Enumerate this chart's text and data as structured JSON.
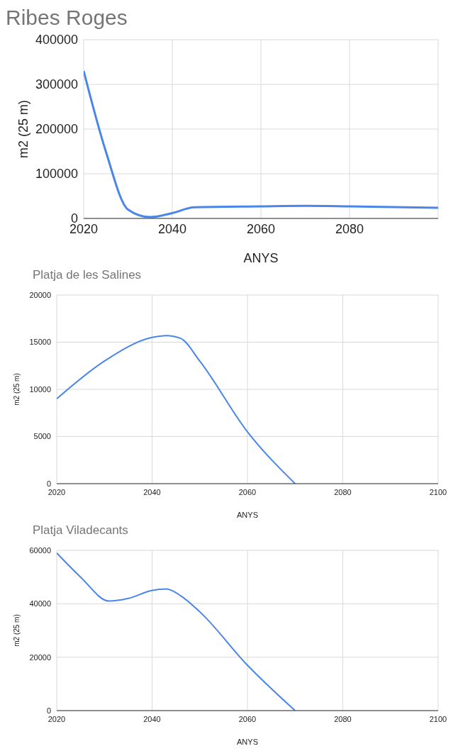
{
  "chart_data": [
    {
      "type": "line",
      "title": "Ribes Roges",
      "xlabel": "ANYS",
      "ylabel": "m2 (25 m)",
      "x": [
        2020,
        2025,
        2030,
        2035,
        2040,
        2045,
        2060,
        2070,
        2080,
        2100
      ],
      "series": [
        {
          "color": "#4a86e8",
          "values": [
            330000,
            150000,
            20000,
            3000,
            12000,
            25000,
            27000,
            28000,
            27000,
            24000
          ]
        }
      ],
      "xlim": [
        2020,
        2100
      ],
      "xticks": [
        2020,
        2040,
        2060,
        2080
      ],
      "ylim": [
        0,
        400000
      ],
      "yticks": [
        0,
        100000,
        200000,
        300000,
        400000
      ],
      "grid": true
    },
    {
      "type": "line",
      "title": "Platja de les Salines",
      "xlabel": "ANYS",
      "ylabel": "m2 (25 m)",
      "x": [
        2020,
        2030,
        2040,
        2043,
        2046,
        2050,
        2060,
        2070
      ],
      "series": [
        {
          "color": "#4a86e8",
          "values": [
            9000,
            13000,
            15500,
            15700,
            15400,
            13000,
            5500,
            0
          ]
        }
      ],
      "xlim": [
        2020,
        2100
      ],
      "xticks": [
        2020,
        2040,
        2060,
        2080,
        2100
      ],
      "ylim": [
        0,
        20000
      ],
      "yticks": [
        0,
        5000,
        10000,
        15000,
        20000
      ],
      "grid": true
    },
    {
      "type": "line",
      "title": "Platja Viladecants",
      "xlabel": "ANYS",
      "ylabel": "m2 (25 m)",
      "x": [
        2020,
        2025,
        2031,
        2035,
        2040,
        2043,
        2046,
        2050,
        2060,
        2070
      ],
      "series": [
        {
          "color": "#4a86e8",
          "values": [
            59000,
            50000,
            41000,
            42000,
            45000,
            45500,
            43000,
            37000,
            17000,
            0
          ]
        }
      ],
      "xlim": [
        2020,
        2100
      ],
      "xticks": [
        2020,
        2040,
        2060,
        2080,
        2100
      ],
      "ylim": [
        0,
        60000
      ],
      "yticks": [
        0,
        20000,
        40000,
        60000
      ],
      "grid": true
    }
  ]
}
